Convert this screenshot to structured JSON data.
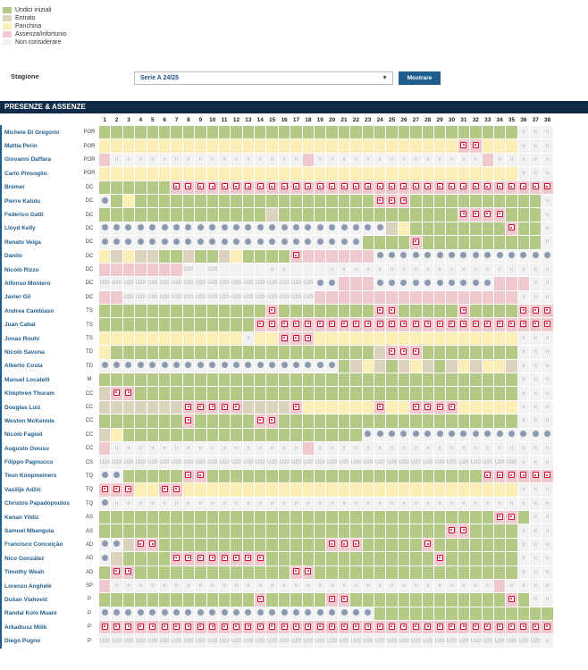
{
  "legend": [
    {
      "label": "Undici iniziali",
      "color": "#b5c987"
    },
    {
      "label": "Entrato",
      "color": "#dcd3be"
    },
    {
      "label": "Panchina",
      "color": "#fbeeb6"
    },
    {
      "label": "Assenza/infortunio",
      "color": "#f0c9cf"
    },
    {
      "label": "Non considerare",
      "color": "#f2f2f2"
    }
  ],
  "season": {
    "label": "Stagione",
    "selected": "Serie A 24/25",
    "button": "Mostrare"
  },
  "section_title": "PRESENZE & ASSENZE",
  "matchdays": [
    "1",
    "2",
    "3",
    "4",
    "5",
    "6",
    "7",
    "8",
    "9",
    "10",
    "11",
    "12",
    "13",
    "14",
    "15",
    "16",
    "17",
    "18",
    "19",
    "20",
    "21",
    "22",
    "23",
    "24",
    "25",
    "26",
    "27",
    "28",
    "29",
    "30",
    "31",
    "32",
    "33",
    "34",
    "35",
    "36",
    "37",
    "38"
  ],
  "players": [
    {
      "name": "Michele Di Gregorio",
      "role": "POR",
      "cells": "SSSSSSSSSSSSSSSSSSSSSSSSSSSSSSSSSSS"
    },
    {
      "name": "Mattia Perin",
      "role": "POR",
      "cells": "PPPPPPPPPPPPPPPPPPPPPPPPPPPPPPiiPPP"
    },
    {
      "name": "Giovanni Daffara",
      "role": "POR",
      "cells": "AnnnnnnnnnnnnnnnnAnnnnnnnnnnnnnnAnn"
    },
    {
      "name": "Carlo Pinsoglio",
      "role": "POR",
      "cells": "PPPPPPPPPPPPPPPPPPPPPPPPPPPPPPPPPPP"
    },
    {
      "name": "Bremer",
      "role": "DC",
      "cells": "SSSSSSiiiiiiiiiiiiiiiiiiiiiiiiiiiiiiiii"
    },
    {
      "name": "Pierre Kalulu",
      "role": "DC",
      "cells": "cSPSSSSSSSSSSSSSSSSSSSSiiiSSSSSSSSSSS"
    },
    {
      "name": "Federico Gatti",
      "role": "DC",
      "cells": "SSSSSSSSSSSSSSESSSSSSSSSSSSSSSiiiiSSS"
    },
    {
      "name": "Lloyd Kelly",
      "role": "DC",
      "cells": "ccccccccccccccccccccccccEPSSSSSSSSiSS"
    },
    {
      "name": "Renato Veiga",
      "role": "DC",
      "cells": "ccccccccccccccccccccccSSSSiSSSSSSSSSS"
    },
    {
      "name": "Danilo",
      "role": "DC",
      "cells": "PEPEESSESSEPSSSSiAAAAAAccccccccccccccccc"
    },
    {
      "name": "Nicolò Rizzo",
      "role": "DC",
      "cells": "AAAAAAAuNuNNNNnnNNNnnnnnnnnnnnnnnnn"
    },
    {
      "name": "Alfonso Montero",
      "role": "DC",
      "cells": "uuuuuuuuuuuuuuuuuuccAAAccccccccccAAA"
    },
    {
      "name": "Javier Gil",
      "role": "DC",
      "cells": "AAuuuuuuuuuuuuuuuuAAAAAAAAAAAAAAAAA"
    },
    {
      "name": "Andrea Cambiaso",
      "role": "TS",
      "cells": "SSSSSSSSSSSSSSiSSSSSSSSiiSSSSSiSSSSiii"
    },
    {
      "name": "Juan Cabal",
      "role": "TS",
      "cells": "SSSSSSSSSSSSSiiiiiiiiiiiiiiiiiiiiiiiiii"
    },
    {
      "name": "Jonas Rouhi",
      "role": "TS",
      "cells": "PPPPPPPPPPPPnPPiiiPPPPPPPPPPPPPPPPP"
    },
    {
      "name": "Nicolò Savona",
      "role": "TD",
      "cells": "PSSSSSSSSSSSSSSSSSSSSSSEiiiSSSSSSSS"
    },
    {
      "name": "Alberto Costa",
      "role": "TD",
      "cells": "ccccccccccccccccccccSEPESEPESEPEPPE"
    },
    {
      "name": "Manuel Locatelli",
      "role": "M",
      "cells": "SSSSSSSSSSSSSSSSSSSSSSSSSSSSSSSSSSS"
    },
    {
      "name": "Khéphren Thuram",
      "role": "CC",
      "cells": "EiiSSSSSSSSSSSSSSSSSSSSSSSSSSSSSSSS"
    },
    {
      "name": "Douglas Luiz",
      "role": "CC",
      "cells": "EEEEEEEiiiiiEEEEiPPPPPPiPPiiiiPPPPP"
    },
    {
      "name": "Weston McKennie",
      "role": "CC",
      "cells": "SSSSSSSiSSSSSiiSSSSSSSSSSSSSSSSSSSS"
    },
    {
      "name": "Nicolò Fagioli",
      "role": "CC",
      "cells": "EPSSSSSSSSSSSSSSSSSSSSccccccccccccccccc"
    },
    {
      "name": "Augusto Owusu",
      "role": "CC",
      "cells": "AnnnnnnnnnnnnnnnnAnnnnnnnnnnnnnnnnn"
    },
    {
      "name": "Filippo Pagnucco",
      "role": "CS",
      "cells": "uuuuuuuuuuuuuuuuuuuuuuuuuuuuuuuuuuu"
    },
    {
      "name": "Teun Koopmeiners",
      "role": "TQ",
      "cells": "ccSSSSSiiSSSSSSSSSSSSSSSSSSSSSSSiiiiii"
    },
    {
      "name": "Vasilije Adžić",
      "role": "TQ",
      "cells": "iiiPPiiPPPPPPPPPPPPPPPPPPPPPPPPPPPP"
    },
    {
      "name": "Christos Papadopoulos",
      "role": "TQ",
      "cells": "cnnnnnnnnnnnnnnnnnnnnnnnnnnnnnnnnnn"
    },
    {
      "name": "Kenan Yildiz",
      "role": "AS",
      "cells": "SSSSSSSSSSSSSSSSSSSSSSSSSSSSSSSSSiiS"
    },
    {
      "name": "Samuel Mbangula",
      "role": "AS",
      "cells": "SSSSSSSSSSSSSSSSSSSSSSSSSSSSSiiSSSS"
    },
    {
      "name": "Francisco Conceição",
      "role": "AD",
      "cells": "ccEiiSSSSSSSSSSSSSSiiiSSSSSiSSSSSSS"
    },
    {
      "name": "Nico González",
      "role": "AD",
      "cells": "cESSSSiiiiiiiiSSSSSSSSSSSSSSiSSSSSS"
    },
    {
      "name": "Timothy Weah",
      "role": "AD",
      "cells": "SiiSSSSSSSSSSSSSiiSSSSSSSSSSSSSSSSS"
    },
    {
      "name": "Lorenzo Anghelè",
      "role": "SP",
      "cells": "AnnnnnnnnnnnnnnnnnnnnnnnnnnnnnnnnAn"
    },
    {
      "name": "Dušan Vlahović",
      "role": "P",
      "cells": "SSSSSSSSSSSSSiSSSSSiiSSSSSSSSSSSSSiS"
    },
    {
      "name": "Randal Kolo Muani",
      "role": "P",
      "cells": "cccccccccccccccccccccccSSSSSSSSSSSSSSS"
    },
    {
      "name": "Arkadiusz Milik",
      "role": "P",
      "cells": "iiiiiiiiiiiiiiiiiiiiiiiiiiiiiiiiiiiiii"
    },
    {
      "name": "Diego Pugno",
      "role": "P",
      "cells": "uuuuuuuuuuuuuuuuuuuuuuuuuuuuuuuuuuuuu"
    }
  ]
}
